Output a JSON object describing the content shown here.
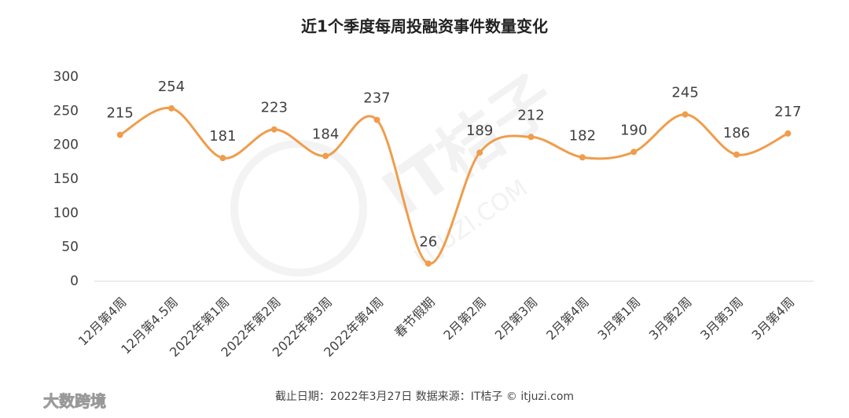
{
  "chart_data": {
    "type": "line",
    "title": "近1个季度每周投融资事件数量变化",
    "categories": [
      "12月第4周",
      "12月第4.5周",
      "2022年第1周",
      "2022年第2周",
      "2022年第3周",
      "2022年第4周",
      "春节假期",
      "2月第2周",
      "2月第3周",
      "2月第4周",
      "3月第1周",
      "3月第2周",
      "3月第3周",
      "3月第4周"
    ],
    "values": [
      215,
      254,
      181,
      223,
      184,
      237,
      26,
      189,
      212,
      182,
      190,
      245,
      186,
      217
    ],
    "color": "#ef9d4c",
    "ylim": [
      0,
      300
    ],
    "yticks": [
      0,
      50,
      100,
      150,
      200,
      250,
      300
    ],
    "grid": false,
    "smooth": true,
    "source": "截止日期：2022年3月27日    数据来源：IT桔子 © itjuzi.com",
    "watermark": "IT桔子",
    "watermark_url": "ITJUZI.COM",
    "logo": "大数跨境"
  }
}
